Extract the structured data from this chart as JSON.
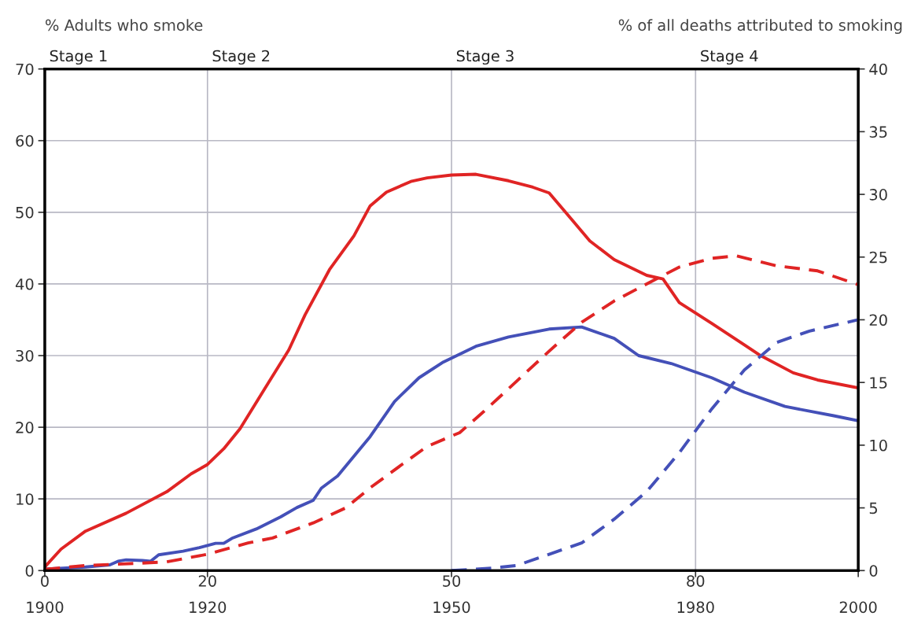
{
  "chart_data": {
    "type": "line",
    "ylabel": "% Adults who smoke",
    "y2label": "% of all deaths attributed to smoking",
    "xlim": [
      1900,
      2000
    ],
    "xticks": [
      1900,
      1920,
      1950,
      1980,
      2000
    ],
    "x2lim": [
      0,
      100
    ],
    "x2ticks": [
      0,
      20,
      50,
      80
    ],
    "ylim": [
      0,
      70
    ],
    "yticks": [
      0,
      10,
      20,
      30,
      40,
      50,
      60,
      70
    ],
    "y2lim": [
      0,
      40
    ],
    "y2ticks": [
      0,
      5,
      10,
      15,
      20,
      25,
      30,
      35,
      40
    ],
    "grid": true,
    "series": [
      {
        "color": "#e02424",
        "line_style": "solid",
        "x": [
          1900,
          1902,
          1905,
          1910,
          1915,
          1918,
          1920,
          1922,
          1924,
          1927,
          1930,
          1932,
          1935,
          1938,
          1940,
          1942,
          1945,
          1947,
          1950,
          1953,
          1957,
          1960,
          1962,
          1965,
          1967,
          1970,
          1974,
          1976,
          1978,
          1982,
          1986,
          1988,
          1992,
          1995,
          2000
        ],
        "values": [
          0.5,
          3,
          5.5,
          8,
          11,
          13.5,
          14.8,
          17,
          19.8,
          25.3,
          30.8,
          35.7,
          42,
          46.7,
          50.9,
          52.8,
          54.3,
          54.8,
          55.2,
          55.3,
          54.4,
          53.5,
          52.7,
          48.7,
          46,
          43.4,
          41.2,
          40.7,
          37.4,
          34.5,
          31.5,
          30,
          27.6,
          26.6,
          25.5
        ]
      },
      {
        "color": "#4450b8",
        "line_style": "solid",
        "x": [
          1900,
          1905,
          1908,
          1909,
          1910,
          1912,
          1913,
          1914,
          1917,
          1919,
          1921,
          1922,
          1923,
          1926,
          1929,
          1931,
          1933,
          1934,
          1936,
          1940,
          1943,
          1946,
          1949,
          1953,
          1957,
          1962,
          1966,
          1970,
          1973,
          1977,
          1982,
          1986,
          1991,
          1997,
          2000
        ],
        "values": [
          0.2,
          0.5,
          0.8,
          1.3,
          1.5,
          1.4,
          1.3,
          2.2,
          2.7,
          3.2,
          3.8,
          3.8,
          4.5,
          5.8,
          7.5,
          8.8,
          9.8,
          11.5,
          13.2,
          18.7,
          23.6,
          26.9,
          29.1,
          31.3,
          32.6,
          33.7,
          34,
          32.4,
          30,
          28.9,
          26.9,
          24.9,
          22.9,
          21.6,
          20.9
        ]
      },
      {
        "color": "#e02424",
        "line_style": "dashed",
        "axis": "y2",
        "x": [
          1900,
          1905,
          1912,
          1915,
          1920,
          1925,
          1928,
          1933,
          1937,
          1940,
          1944,
          1947,
          1951,
          1954,
          1958,
          1962,
          1966,
          1970,
          1975,
          1978,
          1982,
          1985,
          1990,
          1995,
          2000
        ],
        "values": [
          0.1,
          0.4,
          0.6,
          0.7,
          1.3,
          2.2,
          2.6,
          3.8,
          5,
          6.6,
          8.5,
          9.9,
          11,
          12.7,
          15.1,
          17.5,
          19.8,
          21.5,
          23.2,
          24.2,
          24.9,
          25.1,
          24.3,
          23.9,
          22.8
        ]
      },
      {
        "color": "#4450b8",
        "line_style": "dashed",
        "axis": "y2",
        "x": [
          1950,
          1955,
          1958,
          1962,
          1966,
          1970,
          1974,
          1978,
          1982,
          1986,
          1990,
          1994,
          2000
        ],
        "values": [
          0,
          0.2,
          0.4,
          1.3,
          2.2,
          4.1,
          6.3,
          9.4,
          12.9,
          16,
          18.2,
          19.1,
          20
        ]
      }
    ],
    "annotations": [
      "Stage 1",
      "Stage 2",
      "Stage 3",
      "Stage 4"
    ]
  }
}
